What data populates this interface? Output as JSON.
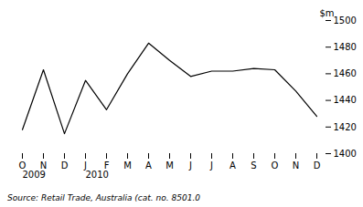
{
  "chart_data": {
    "type": "line",
    "categories": [
      "O",
      "N",
      "D",
      "J",
      "F",
      "M",
      "A",
      "M",
      "J",
      "J",
      "A",
      "S",
      "O",
      "N",
      "D"
    ],
    "values": [
      1418,
      1463,
      1415,
      1455,
      1433,
      1460,
      1483,
      1470,
      1458,
      1462,
      1462,
      1464,
      1463,
      1447,
      1428
    ],
    "color": "#000000",
    "ylim": [
      1400,
      1500
    ],
    "yticks": [
      1400,
      1420,
      1440,
      1460,
      1480,
      1500
    ],
    "ylabel": "$m",
    "annotations": [
      {
        "text": "2009",
        "x": 0
      },
      {
        "text": "2010",
        "x": 3
      }
    ],
    "source": "Source: Retail Trade, Australia (cat. no. 8501.0",
    "grid": false
  }
}
